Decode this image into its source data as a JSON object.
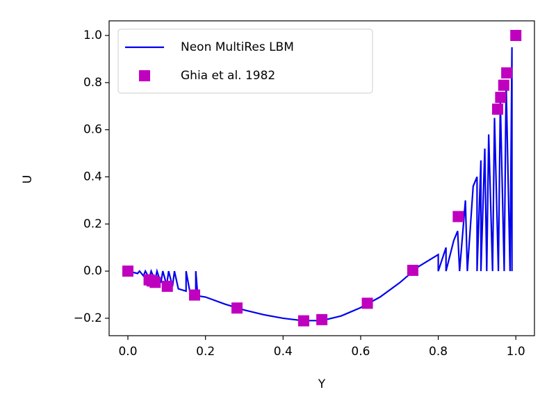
{
  "chart_data": {
    "type": "line",
    "xlabel": "Y",
    "ylabel": "U",
    "xlim": [
      -0.0484,
      1.048
    ],
    "ylim": [
      -0.274,
      1.062
    ],
    "xticks": [
      {
        "value": 0,
        "label": "0.0"
      },
      0.2,
      0.4,
      0.6,
      0.8,
      {
        "value": 1,
        "label": "1.0"
      }
    ],
    "yticks": [
      {
        "value": -0.2,
        "label": "−0.2"
      },
      {
        "value": 0,
        "label": "0.0"
      },
      0.2,
      0.4,
      0.6,
      0.8,
      {
        "value": 1,
        "label": "1.0"
      }
    ],
    "legend": "upper left",
    "series": [
      {
        "name": "Neon MultiRes LBM",
        "color": "#0000ee",
        "kind": "line",
        "x": [
          0,
          0.025,
          0.03,
          0.04,
          0.045,
          0.055,
          0.06,
          0.07,
          0.075,
          0.085,
          0.09,
          0.1,
          0.105,
          0.115,
          0.12,
          0.13,
          0.15,
          0.15,
          0.16,
          0.175,
          0.175,
          0.18,
          0.2,
          0.25,
          0.3,
          0.35,
          0.4,
          0.45,
          0.5,
          0.55,
          0.6,
          0.65,
          0.7,
          0.75,
          0.8,
          0.8,
          0.82,
          0.82,
          0.84,
          0.85,
          0.855,
          0.87,
          0.875,
          0.89,
          0.9,
          0.9,
          0.91,
          0.91,
          0.92,
          0.925,
          0.93,
          0.94,
          0.945,
          0.955,
          0.96,
          0.97,
          0.975,
          0.985,
          0.99,
          0.99
        ],
        "values": [
          0,
          -0.01,
          0,
          -0.02,
          0,
          -0.03,
          0,
          -0.04,
          0,
          -0.05,
          0,
          -0.06,
          0,
          -0.065,
          0,
          -0.075,
          -0.085,
          0,
          -0.09,
          -0.1,
          0,
          -0.105,
          -0.11,
          -0.14,
          -0.165,
          -0.185,
          -0.2,
          -0.21,
          -0.21,
          -0.19,
          -0.155,
          -0.11,
          -0.05,
          0.02,
          0.07,
          0,
          0.1,
          0,
          0.13,
          0.17,
          0,
          0.3,
          0,
          0.36,
          0.4,
          0,
          0.47,
          0,
          0.52,
          0,
          0.58,
          0,
          0.65,
          0,
          0.72,
          0,
          0.8,
          0,
          0.95,
          0
        ]
      },
      {
        "name": "Ghia et al. 1982",
        "color": "#bf00bf",
        "kind": "scatter",
        "x": [
          0,
          0.0547,
          0.0625,
          0.0703,
          0.1016,
          0.1719,
          0.2813,
          0.4531,
          0.5,
          0.6172,
          0.7344,
          0.8516,
          0.9531,
          0.9609,
          0.9688,
          0.9766,
          1.0
        ],
        "values": [
          0,
          -0.03717,
          -0.04192,
          -0.04775,
          -0.06434,
          -0.1015,
          -0.15662,
          -0.2109,
          -0.20581,
          -0.13641,
          0.00332,
          0.23151,
          0.68717,
          0.73722,
          0.78871,
          0.84123,
          1.0
        ]
      }
    ]
  }
}
